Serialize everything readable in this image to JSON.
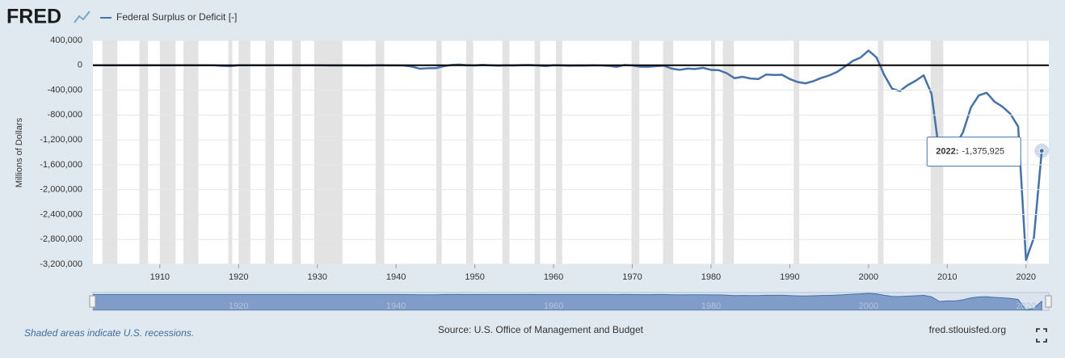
{
  "chart_data": {
    "type": "line",
    "logo": "FRED",
    "legend": "Federal Surplus or Deficit [-]",
    "y_label": "Millions of Dollars",
    "note": "Shaded areas indicate U.S. recessions.",
    "source": "Source: U.S. Office of Management and Budget",
    "site": "fred.stlouisfed.org",
    "tooltip": {
      "title": "2022:",
      "text": "-1,375,925"
    },
    "x": [
      1901,
      1902,
      1903,
      1904,
      1905,
      1906,
      1907,
      1908,
      1909,
      1910,
      1911,
      1912,
      1913,
      1914,
      1915,
      1916,
      1917,
      1918,
      1919,
      1920,
      1921,
      1922,
      1923,
      1924,
      1925,
      1926,
      1927,
      1928,
      1929,
      1930,
      1931,
      1932,
      1933,
      1934,
      1935,
      1936,
      1937,
      1938,
      1939,
      1940,
      1941,
      1942,
      1943,
      1944,
      1945,
      1946,
      1947,
      1948,
      1949,
      1950,
      1951,
      1952,
      1953,
      1954,
      1955,
      1956,
      1957,
      1958,
      1959,
      1960,
      1961,
      1962,
      1963,
      1964,
      1965,
      1966,
      1967,
      1968,
      1969,
      1970,
      1971,
      1972,
      1973,
      1974,
      1975,
      1976,
      1977,
      1978,
      1979,
      1980,
      1981,
      1982,
      1983,
      1984,
      1985,
      1986,
      1987,
      1988,
      1989,
      1990,
      1991,
      1992,
      1993,
      1994,
      1995,
      1996,
      1997,
      1998,
      1999,
      2000,
      2001,
      2002,
      2003,
      2004,
      2005,
      2006,
      2007,
      2008,
      2009,
      2010,
      2011,
      2012,
      2013,
      2014,
      2015,
      2016,
      2017,
      2018,
      2019,
      2020,
      2021,
      2022
    ],
    "series": [
      {
        "name": "Federal Surplus or Deficit [-]",
        "color": "#4572a7",
        "values": [
          63,
          77,
          45,
          -43,
          -23,
          25,
          87,
          -57,
          -89,
          -18,
          11,
          3,
          0,
          -1,
          -63,
          48,
          -853,
          -9033,
          -13363,
          291,
          509,
          736,
          713,
          963,
          717,
          865,
          1155,
          939,
          734,
          738,
          -462,
          -2735,
          -2602,
          -3586,
          -2803,
          -4304,
          -2193,
          -89,
          -2846,
          -2920,
          -4941,
          -20503,
          -54554,
          -47557,
          -47553,
          -15936,
          4018,
          11796,
          580,
          -3119,
          6102,
          -1519,
          -6493,
          -1154,
          -2993,
          3947,
          3412,
          -2769,
          -12849,
          301,
          -3335,
          -7146,
          -4756,
          -5915,
          -1411,
          -3698,
          -8643,
          -25161,
          3242,
          -2842,
          -23033,
          -23373,
          -14908,
          -6135,
          -53242,
          -73732,
          -53659,
          -59185,
          -40726,
          -73830,
          -78968,
          -127977,
          -207802,
          -185367,
          -212308,
          -221227,
          -149730,
          -155178,
          -152639,
          -221036,
          -269238,
          -290321,
          -255051,
          -203186,
          -163952,
          -107431,
          -21884,
          69270,
          125610,
          236241,
          128236,
          -157758,
          -377585,
          -412727,
          -318346,
          -248181,
          -160701,
          -458553,
          -1412688,
          -1294373,
          -1299599,
          -1076574,
          -679775,
          -484602,
          -441960,
          -584651,
          -665446,
          -779137,
          -983592,
          -3131917,
          -2775306,
          -1375925
        ]
      }
    ],
    "recessions": [
      [
        1902.7,
        1904.6
      ],
      [
        1907.4,
        1908.5
      ],
      [
        1910.0,
        1912.0
      ],
      [
        1913.0,
        1914.9
      ],
      [
        1918.7,
        1919.2
      ],
      [
        1920.0,
        1921.5
      ],
      [
        1923.4,
        1924.5
      ],
      [
        1926.8,
        1927.9
      ],
      [
        1929.6,
        1933.2
      ],
      [
        1937.4,
        1938.5
      ],
      [
        1945.1,
        1945.8
      ],
      [
        1948.9,
        1949.8
      ],
      [
        1953.5,
        1954.4
      ],
      [
        1957.6,
        1958.3
      ],
      [
        1960.3,
        1961.1
      ],
      [
        1969.9,
        1970.9
      ],
      [
        1973.9,
        1975.2
      ],
      [
        1980.0,
        1980.5
      ],
      [
        1981.5,
        1982.9
      ],
      [
        1990.5,
        1991.2
      ],
      [
        2001.2,
        2001.9
      ],
      [
        2007.9,
        2009.5
      ],
      [
        2020.1,
        2020.3
      ]
    ],
    "xlim": [
      1901.5,
      2022.9
    ],
    "xticks": [
      1910,
      1920,
      1930,
      1940,
      1950,
      1960,
      1970,
      1980,
      1990,
      2000,
      2010,
      2020
    ],
    "navigator_xticks": [
      1920,
      1940,
      1960,
      1980,
      2000,
      2020
    ],
    "ylim": [
      -3200000,
      400000
    ],
    "yticks": [
      {
        "value": 400000,
        "label": "400,000"
      },
      0,
      {
        "value": -400000,
        "label": "-400,000"
      },
      {
        "value": -800000,
        "label": "-800,000"
      },
      {
        "value": -1200000,
        "label": "-1,200,000"
      },
      {
        "value": -1600000,
        "label": "-1,600,000"
      },
      {
        "value": -2000000,
        "label": "-2,000,000"
      },
      {
        "value": -2400000,
        "label": "-2,400,000"
      },
      {
        "value": -2800000,
        "label": "-2,800,000"
      },
      {
        "value": -3200000,
        "label": "-3,200,000"
      }
    ],
    "grid": true
  }
}
